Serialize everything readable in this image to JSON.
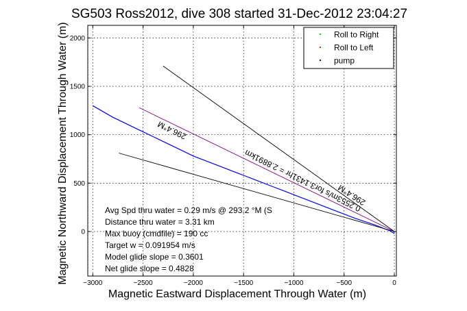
{
  "chart_data": {
    "type": "line",
    "title": "SG503 Ross2012, dive 308 started 31-Dec-2012 23:04:27",
    "xlabel": "Magnetic Eastward Displacement Through Water (m)",
    "ylabel": "Magnetic Northward Displacement Through Water (m)",
    "xlim": [
      -3050,
      20
    ],
    "ylim": [
      -460,
      2130
    ],
    "xticks": [
      -3000,
      -2500,
      -2000,
      -1500,
      -1000,
      -500,
      0
    ],
    "xtick_labels": [
      "−3000",
      "−2500",
      "−2000",
      "−1500",
      "−1000",
      "−500",
      "0"
    ],
    "yticks": [
      0,
      500,
      1000,
      1500,
      2000
    ],
    "ytick_labels": [
      "0",
      "500",
      "1000",
      "1500",
      "2000"
    ],
    "grid": true,
    "legend_position": "top-right",
    "legend": [
      {
        "label": "Roll to Right",
        "color": "#00cc00"
      },
      {
        "label": "Roll to Left",
        "color": "#ff0000"
      },
      {
        "label": "pump",
        "color": "#000000"
      }
    ],
    "series": [
      {
        "color": "#0000ff",
        "points": [
          [
            -3000,
            1300
          ],
          [
            -2900,
            1240
          ],
          [
            -2800,
            1180
          ],
          [
            -2700,
            1130
          ],
          [
            -2600,
            1080
          ],
          [
            -2500,
            1030
          ],
          [
            -2400,
            980
          ],
          [
            -2300,
            930
          ],
          [
            -2200,
            880
          ],
          [
            -2100,
            830
          ],
          [
            -2000,
            780
          ],
          [
            -1900,
            740
          ],
          [
            -1800,
            700
          ],
          [
            -1700,
            660
          ],
          [
            -1600,
            620
          ],
          [
            -1500,
            580
          ],
          [
            -1400,
            540
          ],
          [
            -1300,
            500
          ],
          [
            -1200,
            460
          ],
          [
            -1100,
            420
          ],
          [
            -1000,
            380
          ],
          [
            -900,
            340
          ],
          [
            -800,
            300
          ],
          [
            -700,
            260
          ],
          [
            -600,
            220
          ],
          [
            -500,
            180
          ],
          [
            -400,
            140
          ],
          [
            -300,
            105
          ],
          [
            -200,
            70
          ],
          [
            -100,
            30
          ],
          [
            -50,
            10
          ],
          [
            0,
            -20
          ]
        ]
      },
      {
        "color": "#800080",
        "points": [
          [
            -2540,
            1280
          ],
          [
            0,
            0
          ]
        ]
      },
      {
        "color": "#000000",
        "points": [
          [
            -2300,
            1710
          ],
          [
            0,
            0
          ]
        ]
      },
      {
        "color": "#000000",
        "points": [
          [
            -2740,
            810
          ],
          [
            0,
            0
          ]
        ]
      }
    ],
    "annotations": [
      {
        "text": "296.4°M",
        "x": -2200,
        "y": 1070,
        "angle": 26.5
      },
      {
        "text": "0.2553m/s for3.1431hr = 2.8891km",
        "x": -900,
        "y": 550,
        "angle": 26.5
      },
      {
        "text": "296.4°M",
        "x": -410,
        "y": 400,
        "angle": 33
      }
    ],
    "stats": [
      "Avg Spd thru water =  0.29 m/s @ 293.2 °M (S",
      "Distance thru water =  3.31 km",
      "Max buoy (cmdfile) = 190 cc",
      "Target w = 0.091954 m/s",
      "Model glide slope = 0.3601",
      "Net glide slope = 0.4828"
    ]
  }
}
